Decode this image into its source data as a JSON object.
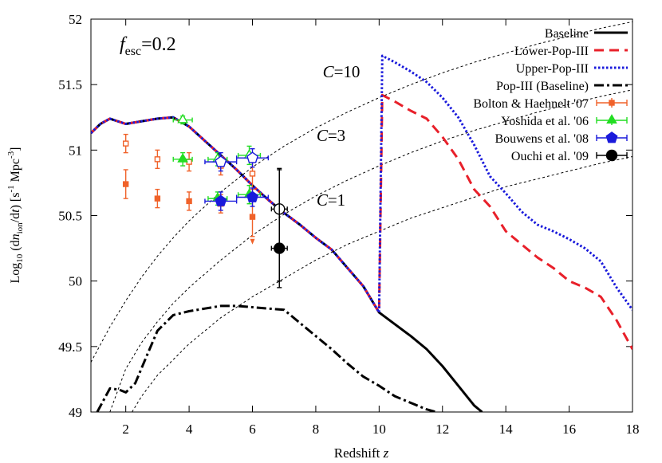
{
  "chart_data": {
    "type": "line",
    "annotation": "f_esc=0.2",
    "annotation_parts": {
      "f": "f",
      "sub": "esc",
      "rest": "=0.2"
    },
    "xlabel": "Redshift z",
    "ylabel": "Log10 (dn_ion/dt) [s^-1 Mpc^-3]",
    "xlabel_parts": {
      "main": "Redshift ",
      "var": "z"
    },
    "ylabel_parts": {
      "a": "Log",
      "b": "10",
      "c": " (d",
      "d": "n",
      "e": "ion",
      "f": "/d",
      "g": "t",
      "h": ") [s",
      "i": "-1",
      "j": " Mpc",
      "k": "-3",
      "l": "]"
    },
    "xlim": [
      0.9,
      18
    ],
    "ylim": [
      49,
      52
    ],
    "xticks": [
      2,
      4,
      6,
      8,
      10,
      12,
      14,
      16,
      18
    ],
    "yticks": [
      49,
      49.5,
      50,
      50.5,
      51,
      51.5,
      52
    ],
    "ytick_labels": [
      "49",
      "49.5",
      "50",
      "50.5",
      "51",
      "51.5",
      "52"
    ],
    "grid": false,
    "legend_position": "top-right",
    "clumping_curves": [
      {
        "label": "C=10",
        "var": "C",
        "val": "=10",
        "x": [
          0.9,
          1.5,
          2,
          2.5,
          3,
          3.5,
          4,
          5,
          6,
          7,
          8,
          9,
          10,
          11,
          12,
          13,
          14,
          15,
          16,
          17,
          18
        ],
        "y": [
          49.38,
          49.65,
          49.85,
          50.03,
          50.19,
          50.33,
          50.46,
          50.68,
          50.87,
          51.03,
          51.17,
          51.29,
          51.4,
          51.5,
          51.59,
          51.67,
          51.74,
          51.81,
          51.87,
          51.93,
          51.98
        ]
      },
      {
        "label": "C=3",
        "var": "C",
        "val": "=3",
        "x": [
          1.5,
          2,
          2.5,
          3,
          3.5,
          4,
          5,
          6,
          7,
          8,
          9,
          10,
          11,
          12,
          13,
          14,
          15,
          16,
          17,
          18
        ],
        "y": [
          49.0,
          49.33,
          49.53,
          49.69,
          49.83,
          49.95,
          50.16,
          50.35,
          50.51,
          50.65,
          50.77,
          50.88,
          50.98,
          51.07,
          51.15,
          51.22,
          51.29,
          51.35,
          51.41,
          51.46
        ]
      },
      {
        "label": "C=1",
        "var": "C",
        "val": "=1",
        "x": [
          2.2,
          2.5,
          3,
          3.5,
          4,
          5,
          6,
          7,
          8,
          9,
          10,
          11,
          12,
          13,
          14,
          15,
          16,
          17,
          18
        ],
        "y": [
          49.0,
          49.12,
          49.28,
          49.4,
          49.52,
          49.72,
          49.88,
          50.02,
          50.16,
          50.28,
          50.38,
          50.48,
          50.56,
          50.64,
          50.72,
          50.78,
          50.84,
          50.9,
          50.95
        ]
      }
    ],
    "series": [
      {
        "name": "Baseline",
        "style": "solid",
        "color": "#000000",
        "x": [
          0.9,
          1.2,
          1.5,
          2,
          3,
          3.5,
          4,
          4.5,
          5,
          5.5,
          6,
          6.5,
          7,
          7.5,
          8,
          8.5,
          9,
          9.5,
          10,
          10.5,
          11,
          11.5,
          12,
          12.5,
          13,
          13.25
        ],
        "y": [
          51.13,
          51.2,
          51.24,
          51.2,
          51.24,
          51.25,
          51.18,
          51.07,
          50.96,
          50.85,
          50.73,
          50.62,
          50.52,
          50.43,
          50.33,
          50.24,
          50.1,
          49.96,
          49.76,
          49.67,
          49.58,
          49.48,
          49.35,
          49.2,
          49.05,
          49.0
        ]
      },
      {
        "name": "Lower-Pop-III",
        "style": "dashed",
        "color": "#e8202a",
        "x": [
          0.9,
          1.2,
          1.5,
          2,
          3,
          3.5,
          4,
          4.5,
          5,
          5.5,
          6,
          6.5,
          7,
          7.5,
          8,
          8.5,
          9,
          9.5,
          10,
          10.1,
          10.5,
          11,
          11.5,
          12,
          12.5,
          13,
          13.5,
          14,
          14.5,
          15,
          15.5,
          16,
          16.5,
          17,
          17.5,
          18
        ],
        "y": [
          51.13,
          51.2,
          51.24,
          51.2,
          51.24,
          51.25,
          51.18,
          51.07,
          50.96,
          50.85,
          50.73,
          50.62,
          50.52,
          50.43,
          50.33,
          50.24,
          50.1,
          49.96,
          49.76,
          51.42,
          51.37,
          51.3,
          51.24,
          51.1,
          50.93,
          50.7,
          50.57,
          50.38,
          50.28,
          50.18,
          50.1,
          50.0,
          49.95,
          49.88,
          49.7,
          49.48
        ]
      },
      {
        "name": "Upper-Pop-III",
        "style": "dotted",
        "color": "#1a1adb",
        "x": [
          0.9,
          1.2,
          1.5,
          2,
          3,
          3.5,
          4,
          4.5,
          5,
          5.5,
          6,
          6.5,
          7,
          7.5,
          8,
          8.5,
          9,
          9.5,
          10,
          10.1,
          10.5,
          11,
          11.5,
          12,
          12.5,
          13,
          13.5,
          14,
          14.5,
          15,
          15.5,
          16,
          16.5,
          17,
          17.5,
          18
        ],
        "y": [
          51.13,
          51.2,
          51.24,
          51.2,
          51.24,
          51.25,
          51.18,
          51.07,
          50.96,
          50.85,
          50.73,
          50.62,
          50.52,
          50.43,
          50.33,
          50.24,
          50.1,
          49.96,
          49.76,
          51.72,
          51.67,
          51.6,
          51.52,
          51.4,
          51.25,
          51.04,
          50.8,
          50.67,
          50.53,
          50.43,
          50.38,
          50.32,
          50.25,
          50.15,
          49.95,
          49.78
        ]
      },
      {
        "name": "Pop-III (Baseline)",
        "style": "dashdot",
        "color": "#000000",
        "x": [
          1.1,
          1.5,
          1.8,
          2.0,
          2.3,
          2.7,
          3,
          3.5,
          4,
          4.5,
          5,
          5.5,
          6,
          6.5,
          7,
          7.5,
          8,
          8.5,
          9,
          9.5,
          10,
          10.5,
          11,
          11.5,
          11.8
        ],
        "y": [
          49.0,
          49.18,
          49.17,
          49.15,
          49.22,
          49.45,
          49.62,
          49.74,
          49.77,
          49.79,
          49.81,
          49.81,
          49.8,
          49.79,
          49.78,
          49.68,
          49.58,
          49.48,
          49.37,
          49.27,
          49.2,
          49.12,
          49.07,
          49.02,
          49.0
        ]
      }
    ],
    "observations": [
      {
        "name": "Bolton & Haehnelt '07",
        "color": "#f0622a",
        "marker": "square",
        "points": [
          {
            "x": 2.0,
            "y": 51.05,
            "yerr": 0.07,
            "filled": false
          },
          {
            "x": 3.0,
            "y": 50.93,
            "yerr": 0.07,
            "filled": false
          },
          {
            "x": 4.0,
            "y": 50.91,
            "yerr": 0.07,
            "filled": false
          },
          {
            "x": 5.0,
            "y": 50.88,
            "yerr": 0.07,
            "filled": false
          },
          {
            "x": 6.0,
            "y": 50.82,
            "yerr": 0.12,
            "filled": false
          },
          {
            "x": 2.0,
            "y": 50.74,
            "yerr": 0.11,
            "filled": true
          },
          {
            "x": 3.0,
            "y": 50.63,
            "yerr": 0.07,
            "filled": true
          },
          {
            "x": 4.0,
            "y": 50.61,
            "yerr": 0.07,
            "filled": true
          },
          {
            "x": 5.0,
            "y": 50.59,
            "yerr": 0.07,
            "filled": true
          },
          {
            "x": 6.0,
            "y": 50.49,
            "yerr": 0.15,
            "filled": true,
            "upper_limit": true
          }
        ]
      },
      {
        "name": "Yoshida et al. '06",
        "color": "#22dd22",
        "marker": "triangle",
        "points": [
          {
            "x": 3.8,
            "y": 51.23,
            "xerr": 0.3,
            "yerr": 0.03,
            "filled": false
          },
          {
            "x": 3.8,
            "y": 50.93,
            "xerr": 0.3,
            "yerr": 0.05,
            "filled": true
          },
          {
            "x": 4.9,
            "y": 50.93,
            "xerr": 0.3,
            "yerr": 0.05,
            "filled": false
          },
          {
            "x": 4.9,
            "y": 50.63,
            "xerr": 0.3,
            "yerr": 0.05,
            "filled": true
          },
          {
            "x": 5.9,
            "y": 50.96,
            "xerr": 0.35,
            "yerr": 0.07,
            "filled": false
          },
          {
            "x": 5.9,
            "y": 50.66,
            "xerr": 0.35,
            "yerr": 0.07,
            "filled": true
          }
        ]
      },
      {
        "name": "Bouwens et al. '08",
        "color": "#1a1adb",
        "marker": "pentagon",
        "points": [
          {
            "x": 5.0,
            "y": 50.91,
            "xerr": 0.5,
            "yerr": 0.07,
            "filled": false
          },
          {
            "x": 6.0,
            "y": 50.94,
            "xerr": 0.5,
            "yerr": 0.07,
            "filled": false
          },
          {
            "x": 5.0,
            "y": 50.61,
            "xerr": 0.5,
            "yerr": 0.07,
            "filled": true
          },
          {
            "x": 6.0,
            "y": 50.64,
            "xerr": 0.5,
            "yerr": 0.07,
            "filled": true
          }
        ]
      },
      {
        "name": "Ouchi et al. '09",
        "color": "#000000",
        "marker": "circle",
        "points": [
          {
            "x": 6.85,
            "y": 50.55,
            "xerr": 0.25,
            "yerr_low": 0.55,
            "yerr_high": 0.3,
            "filled": false
          },
          {
            "x": 6.85,
            "y": 50.25,
            "xerr": 0.25,
            "yerr_low": 0.3,
            "yerr_high": 0.61,
            "filled": true
          }
        ]
      }
    ]
  }
}
